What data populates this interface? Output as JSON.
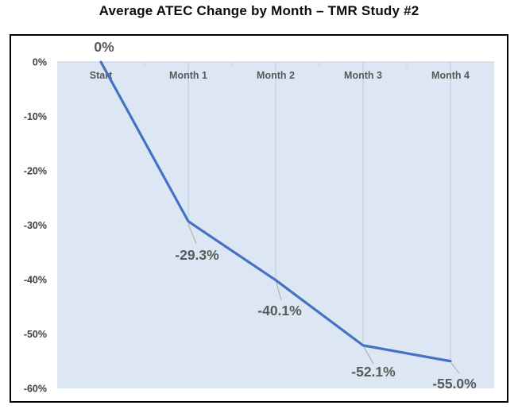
{
  "title": "Average ATEC Change by Month – TMR Study #2",
  "colors": {
    "line": "#4472c4",
    "plot_background": "#dde7f3",
    "drop_line": "#c7cfdd",
    "leader_line": "#a6a6a6",
    "axis_tick_label": "#404040",
    "category_label": "#595959",
    "data_label": "#595959",
    "frame_border": "#000000",
    "title_text": "#0d0d0d"
  },
  "chart_data": {
    "type": "line",
    "title": "Average ATEC Change by Month – TMR Study #2",
    "categories": [
      "Start",
      "Month 1",
      "Month 2",
      "Month 3",
      "Month 4"
    ],
    "series": [
      {
        "name": "Average ATEC Change",
        "values": [
          0,
          -29.3,
          -40.1,
          -52.1,
          -55.0
        ]
      }
    ],
    "point_labels": [
      "0%",
      "-29.3%",
      "-40.1%",
      "-52.1%",
      "-55.0%"
    ],
    "xlabel": "",
    "ylabel": "",
    "ylim": [
      -60,
      0
    ],
    "ytick_step": 10,
    "ytick_labels": [
      "0%",
      "-10%",
      "-20%",
      "-30%",
      "-40%",
      "-50%",
      "-60%"
    ],
    "grid": "drop-lines-to-points",
    "legend": "none",
    "category_labels_position": "inside-top",
    "marker": "none"
  }
}
